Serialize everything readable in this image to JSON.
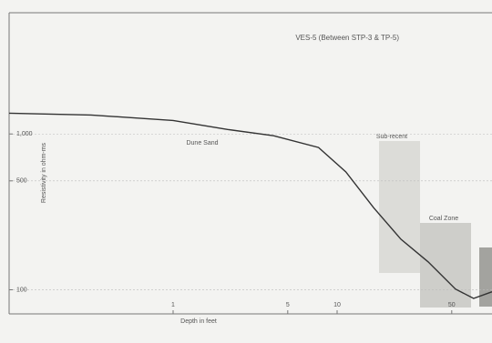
{
  "chart_data": {
    "type": "line",
    "title": "VES-5 (Between STP-3 & TP-5)",
    "x_label": "Depth in feet",
    "y_label": "Resistivity in ohm-ms",
    "log_x": true,
    "log_y": true,
    "grid": true,
    "xlim": [
      0.1,
      88
    ],
    "ylim": [
      70,
      6000
    ],
    "xticks": [
      1,
      5,
      10,
      50
    ],
    "yticks": [
      {
        "value": 1000,
        "label": "1,000"
      },
      500,
      100
    ],
    "x": [
      0.1,
      0.316,
      1,
      2.15,
      4.1,
      7.7,
      11.3,
      16.7,
      24.5,
      35.9,
      52.7,
      68,
      88
    ],
    "series": [
      {
        "name": "VES-5",
        "color": "#333333",
        "values": [
          1359,
          1323,
          1221,
          1069,
          974,
          819,
          572,
          336,
          211,
          151,
          101,
          88,
          97
        ]
      }
    ],
    "annotations": [
      "Dune Sand",
      "Sub-recent",
      "Coal Zone"
    ]
  }
}
